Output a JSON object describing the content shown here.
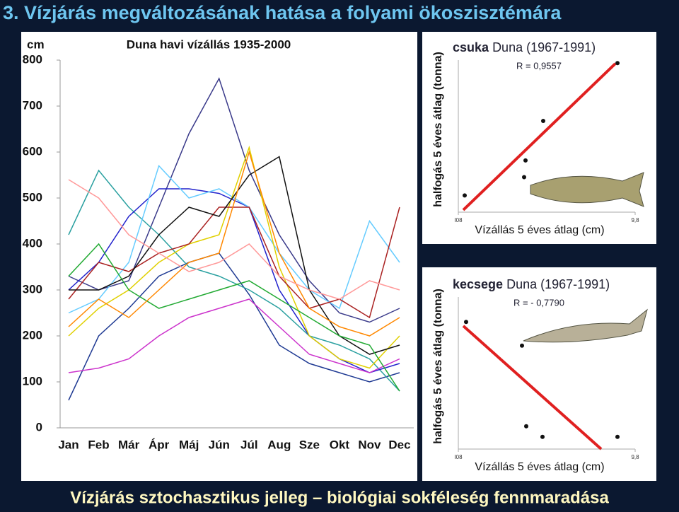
{
  "title": "3. Vízjárás megváltozásának hatása a folyami ökoszisztémára",
  "footer": "Vízjárás sztochasztikus jelleg – biológiai sokféleség fennmaradása",
  "chart_data": [
    {
      "type": "line",
      "title": "Duna havi vízállás 1935-2000",
      "y_label": "cm",
      "categories": [
        "Jan",
        "Feb",
        "Már",
        "Ápr",
        "Máj",
        "Jún",
        "Júl",
        "Aug",
        "Sze",
        "Okt",
        "Nov",
        "Dec"
      ],
      "ylim": [
        0,
        800
      ],
      "yticks": [
        0,
        100,
        200,
        300,
        400,
        500,
        600,
        700,
        800
      ],
      "series": [
        {
          "color": "#3a3a8a",
          "values": [
            330,
            300,
            320,
            480,
            640,
            760,
            560,
            420,
            320,
            250,
            230,
            260
          ]
        },
        {
          "color": "#1f3a93",
          "values": [
            60,
            200,
            260,
            330,
            360,
            380,
            290,
            180,
            140,
            120,
            100,
            120
          ]
        },
        {
          "color": "#2aa0a0",
          "values": [
            420,
            560,
            480,
            420,
            350,
            330,
            300,
            260,
            200,
            180,
            150,
            80
          ]
        },
        {
          "color": "#2222cc",
          "values": [
            300,
            360,
            460,
            520,
            520,
            510,
            480,
            300,
            200,
            150,
            120,
            140
          ]
        },
        {
          "color": "#66ccff",
          "values": [
            250,
            280,
            360,
            570,
            500,
            520,
            480,
            380,
            300,
            260,
            450,
            360
          ]
        },
        {
          "color": "#e0d000",
          "values": [
            200,
            260,
            300,
            360,
            400,
            420,
            610,
            350,
            200,
            150,
            130,
            200
          ]
        },
        {
          "color": "#cc33cc",
          "values": [
            120,
            130,
            150,
            200,
            240,
            260,
            280,
            220,
            160,
            140,
            120,
            150
          ]
        },
        {
          "color": "#aa2222",
          "values": [
            280,
            360,
            340,
            380,
            400,
            480,
            480,
            330,
            260,
            280,
            240,
            480
          ]
        },
        {
          "color": "#111111",
          "values": [
            300,
            300,
            330,
            420,
            480,
            460,
            550,
            590,
            300,
            200,
            160,
            180
          ]
        },
        {
          "color": "#22aa33",
          "values": [
            330,
            400,
            300,
            260,
            280,
            300,
            320,
            280,
            240,
            200,
            180,
            80
          ]
        },
        {
          "color": "#ff8800",
          "values": [
            220,
            280,
            240,
            300,
            360,
            380,
            600,
            380,
            260,
            220,
            200,
            240
          ]
        },
        {
          "color": "#ff9999",
          "values": [
            540,
            500,
            420,
            380,
            340,
            360,
            400,
            330,
            300,
            280,
            320,
            300
          ]
        }
      ]
    },
    {
      "type": "scatter",
      "species": "csuka",
      "title": "Duna (1967-1991)",
      "annotation": "R = 0,9557",
      "x_label": "Vízállás 5 éves átlag (cm)",
      "y_label": "halfogás 5 éves átlag (tonna)",
      "xlim": [
        0,
        100
      ],
      "ylim": [
        0,
        100
      ],
      "xticks": [
        {
          "value": 0,
          "label": "I08"
        },
        {
          "value": 100,
          "label": "9,8"
        }
      ],
      "x": [
        3.6,
        37.2,
        38,
        48,
        90
      ],
      "values": [
        11,
        23,
        34,
        60,
        98
      ],
      "fit_x": [
        2.8,
        88.8
      ],
      "fit_values": [
        1.4,
        97.7
      ],
      "fit_color": "#e02020"
    },
    {
      "type": "scatter",
      "species": "kecsege",
      "title": "Duna (1967-1991)",
      "annotation": "R = - 0,7790",
      "x_label": "Vízállás 5 éves átlag (cm)",
      "y_label": "halfogás 5 éves átlag (tonna)",
      "xlim": [
        0,
        100
      ],
      "ylim": [
        0,
        100
      ],
      "xticks": [
        {
          "value": 0,
          "label": "I08"
        },
        {
          "value": 100,
          "label": "9,8"
        }
      ],
      "x": [
        4.4,
        36,
        38.4,
        47.6,
        90
      ],
      "values": [
        83.6,
        68,
        15,
        8,
        8
      ],
      "fit_x": [
        2.8,
        80.8
      ],
      "fit_values": [
        81,
        0
      ],
      "fit_color": "#e02020"
    }
  ]
}
